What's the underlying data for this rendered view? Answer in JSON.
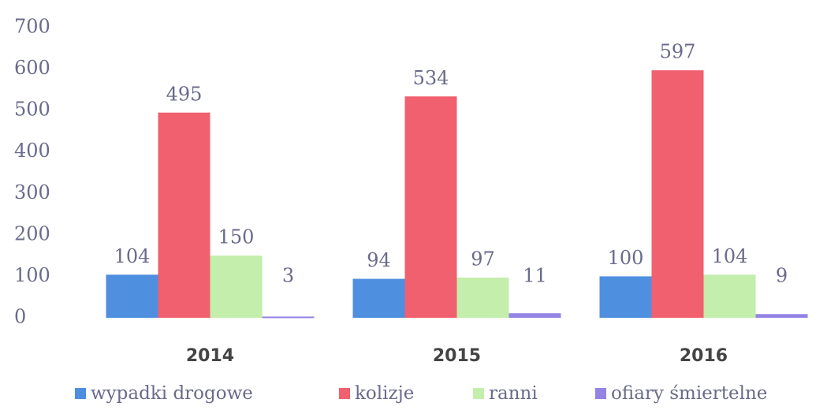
{
  "chart_data": {
    "type": "bar",
    "categories": [
      "2014",
      "2015",
      "2016"
    ],
    "series": [
      {
        "name": "wypadki drogowe",
        "color": "#4f8fe0",
        "values": [
          104,
          94,
          100
        ]
      },
      {
        "name": "kolizje",
        "color": "#f0606e",
        "values": [
          495,
          534,
          597
        ]
      },
      {
        "name": "ranni",
        "color": "#c4eeac",
        "values": [
          150,
          97,
          104
        ]
      },
      {
        "name": "ofiary śmiertelne",
        "color": "#9484e4",
        "values": [
          3,
          11,
          9
        ]
      }
    ],
    "ylim": [
      0,
      700
    ],
    "yticks": [
      0,
      100,
      200,
      300,
      400,
      500,
      600,
      700
    ],
    "grid": false,
    "legend": "bottom"
  }
}
